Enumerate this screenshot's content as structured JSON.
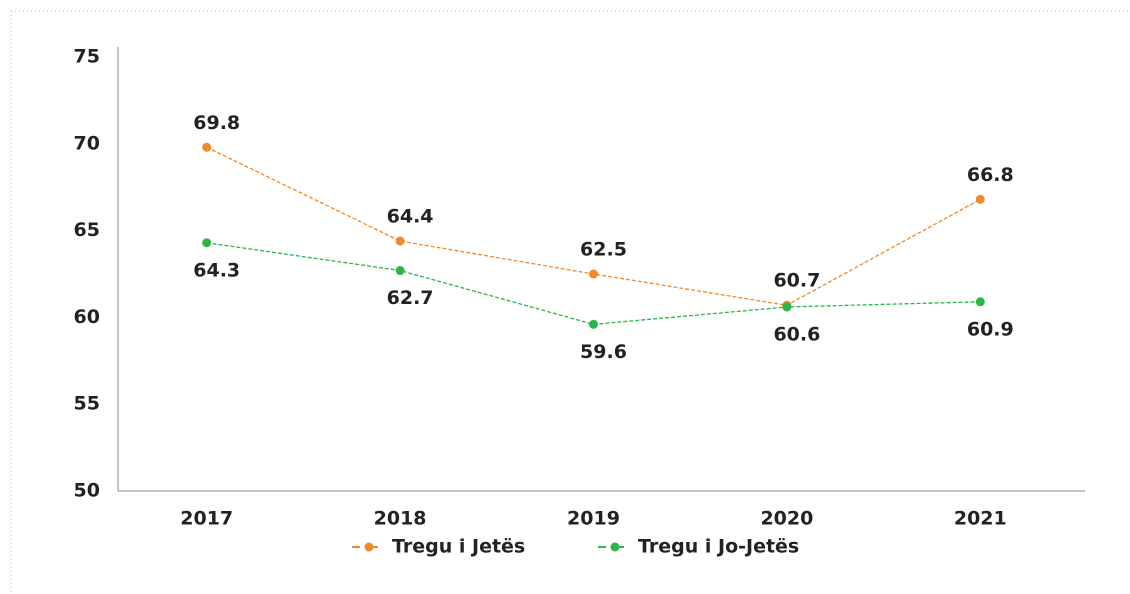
{
  "chart_data": {
    "type": "line",
    "categories": [
      "2017",
      "2018",
      "2019",
      "2020",
      "2021"
    ],
    "series": [
      {
        "name": "Tregu i Jetës",
        "color": "#f08a2c",
        "values": [
          69.8,
          64.4,
          62.5,
          60.7,
          66.8
        ]
      },
      {
        "name": "Tregu i Jo-Jetës",
        "color": "#2bb54b",
        "values": [
          64.3,
          62.7,
          59.6,
          60.6,
          60.9
        ]
      }
    ],
    "ylim": [
      50,
      75
    ],
    "yticks": [
      50,
      55,
      60,
      65,
      70,
      75
    ],
    "grid": false,
    "legend": "bottom"
  }
}
